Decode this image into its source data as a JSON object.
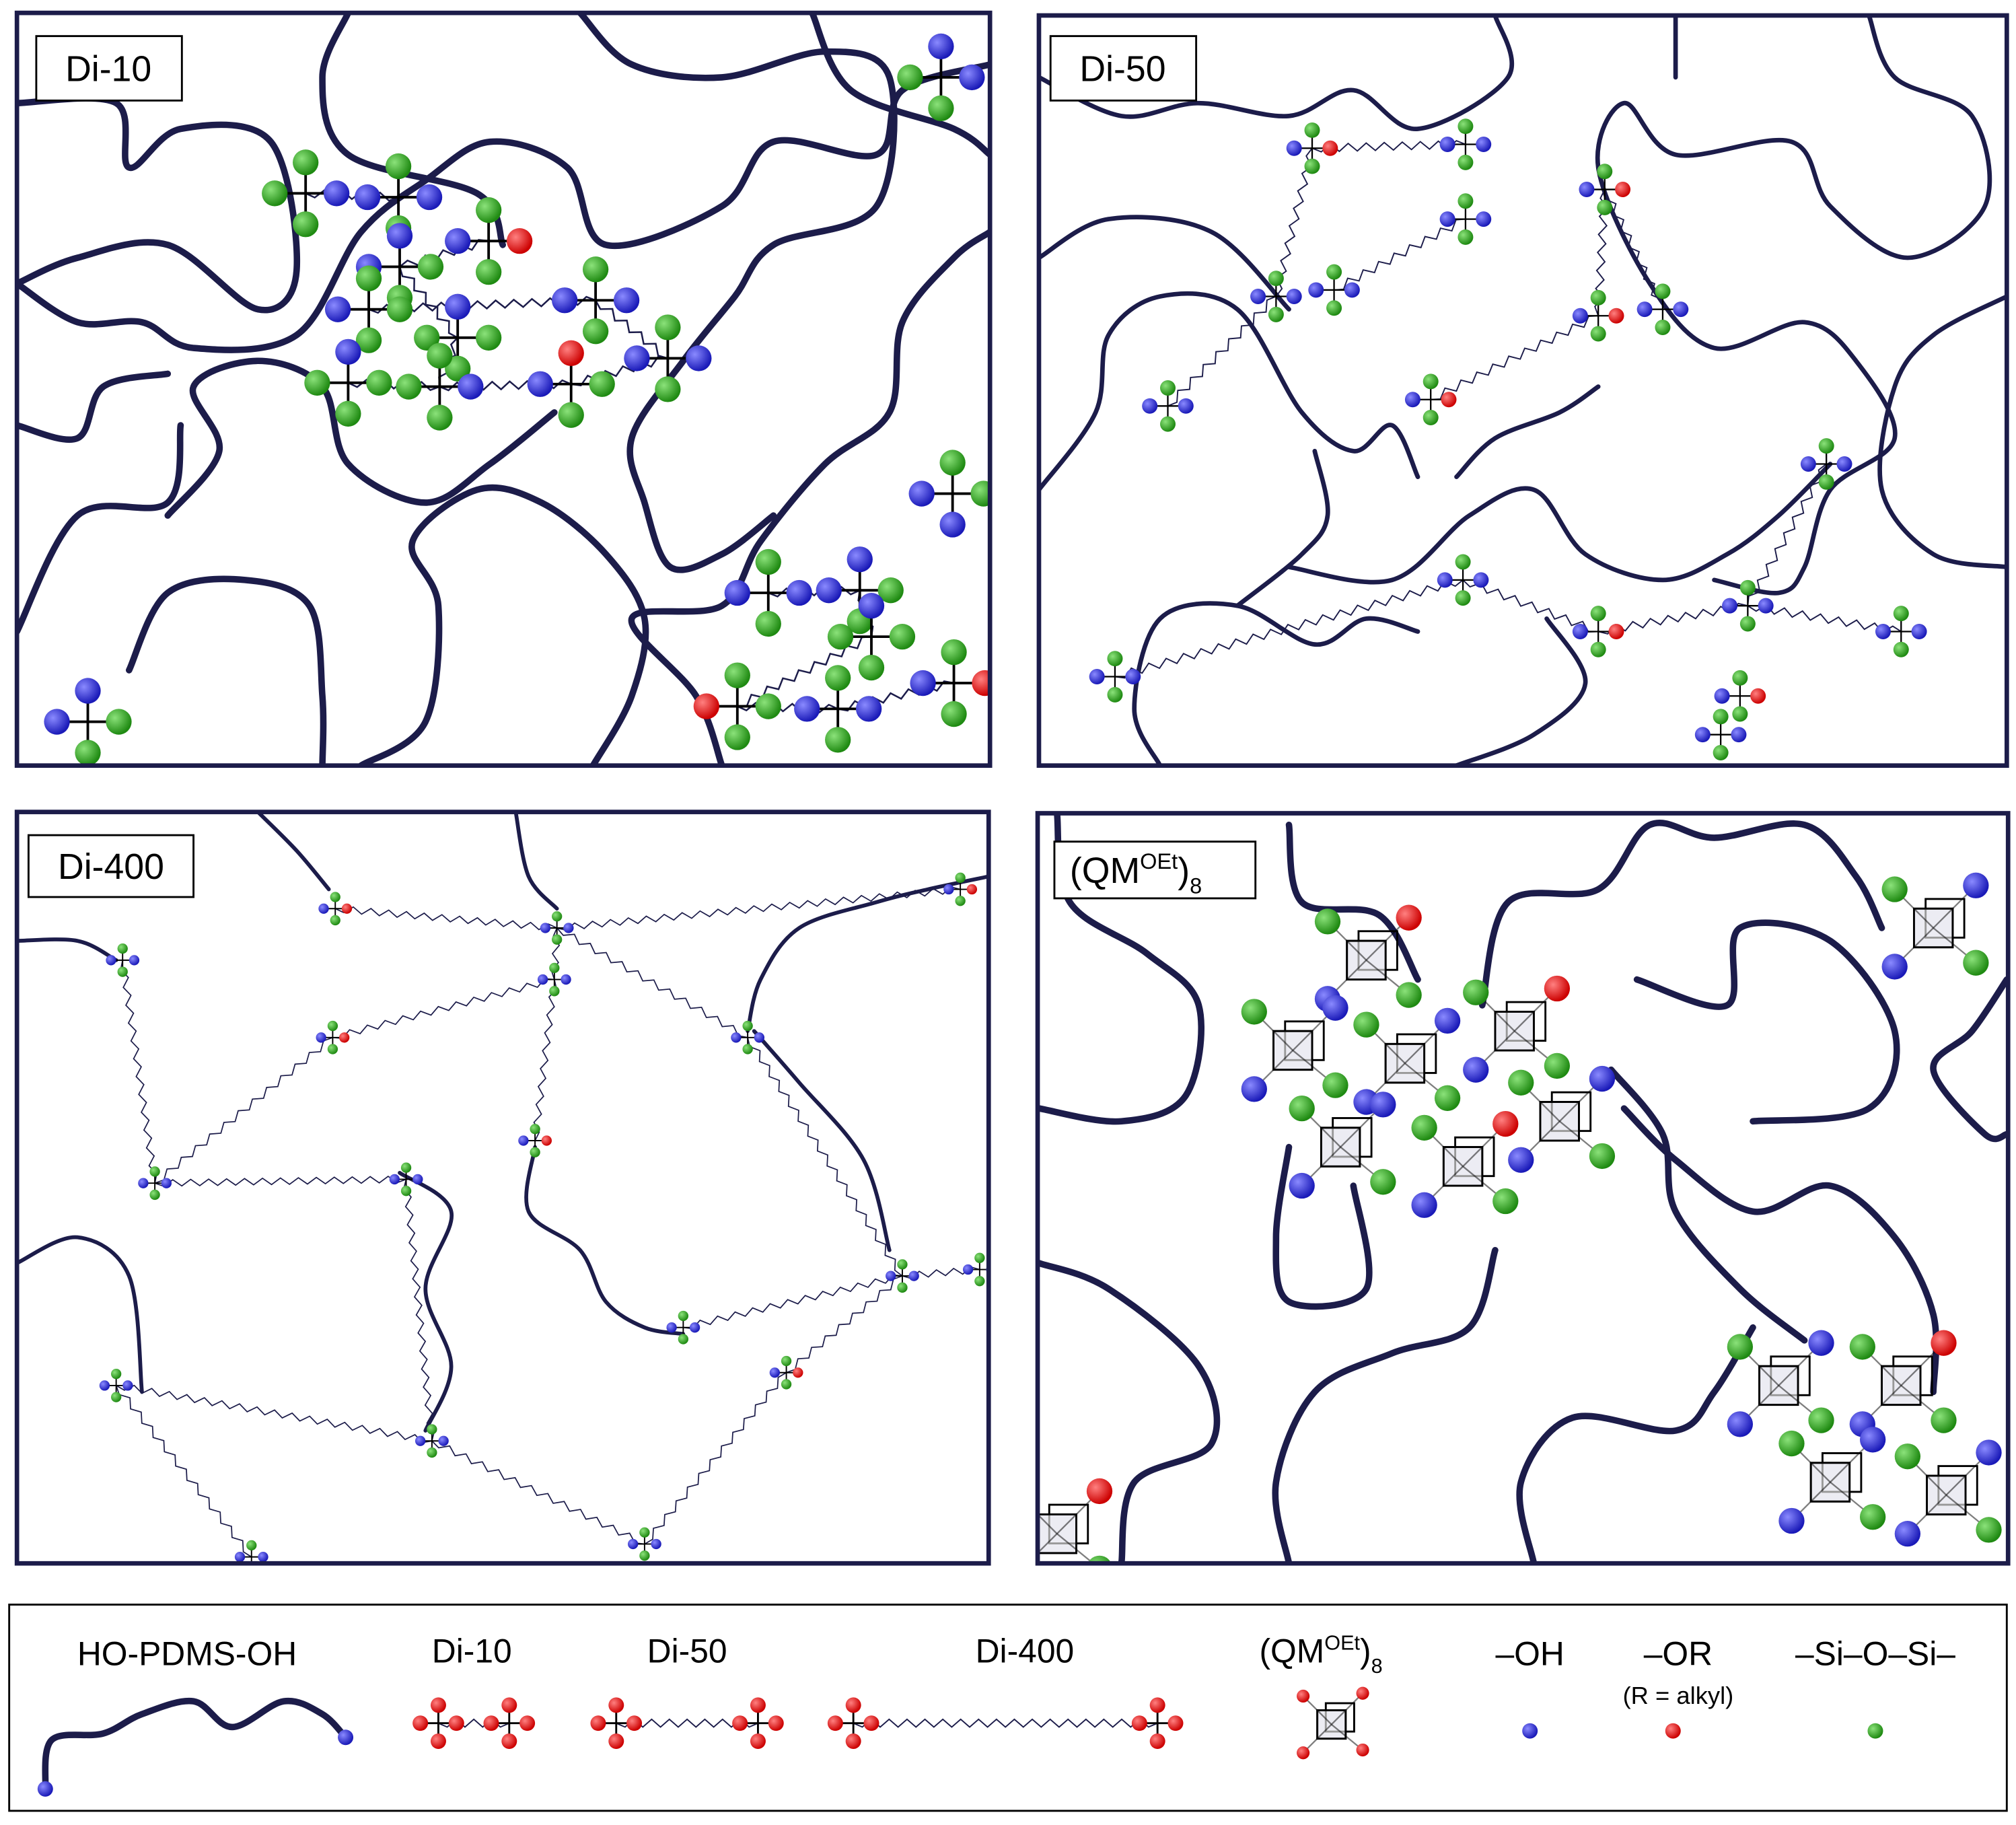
{
  "panels": [
    {
      "label": "Di-10"
    },
    {
      "label": "Di-50"
    },
    {
      "label": "Di-400"
    },
    {
      "label": {
        "base": "(QM",
        "sup": "OEt",
        "tail": ")",
        "sub": "8"
      }
    }
  ],
  "legend": {
    "pdms": "HO-PDMS-OH",
    "di10": "Di-10",
    "di50": "Di-50",
    "di400": "Di-400",
    "qm": {
      "base": "(QM",
      "sup": "OEt",
      "tail": ")",
      "sub": "8"
    },
    "oh": "–OH",
    "or": "–OR",
    "or_note": "(R = alkyl)",
    "siosi": "–Si–O–Si–"
  }
}
